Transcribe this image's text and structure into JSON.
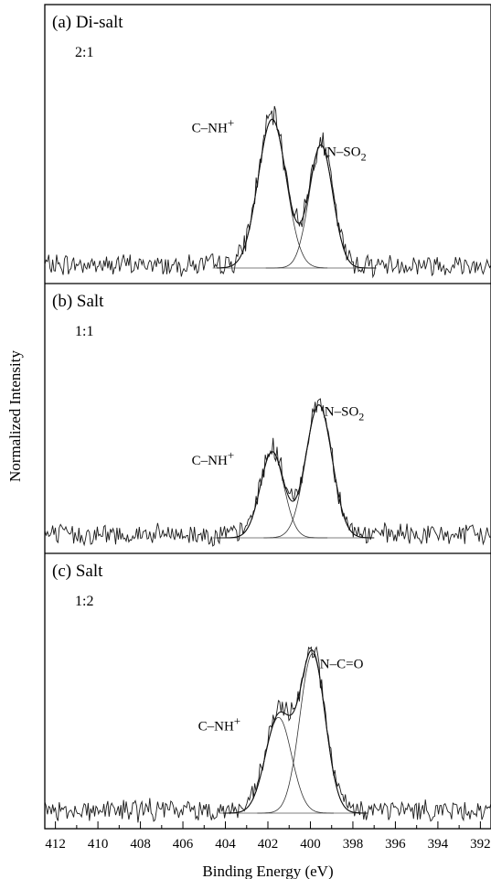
{
  "chart_data": {
    "type": "line",
    "ylabel": "Normalized Intensity",
    "xlabel": "Binding Energy (eV)",
    "xlim": [
      412.5,
      391.5
    ],
    "x_reversed": true,
    "x_ticks": [
      412,
      410,
      408,
      406,
      404,
      402,
      400,
      398,
      396,
      394,
      392
    ],
    "grid": false,
    "panels": [
      {
        "title": "(a) Di-salt",
        "ratio": "2:1",
        "peaks": [
          {
            "label": "C–NH",
            "label_sup": "+",
            "center": 401.8,
            "fwhm": 1.55,
            "height": 0.92
          },
          {
            "label": "N–SO",
            "label_sub": "2",
            "center": 399.5,
            "fwhm": 1.3,
            "height": 0.76
          }
        ]
      },
      {
        "title": "(b) Salt",
        "ratio": "1:1",
        "peaks": [
          {
            "label": "C–NH",
            "label_sup": "+",
            "center": 401.8,
            "fwhm": 1.3,
            "height": 0.55
          },
          {
            "label": "N–SO",
            "label_sub": "2",
            "center": 399.6,
            "fwhm": 1.45,
            "height": 0.85
          }
        ]
      },
      {
        "title": "(c) Salt",
        "ratio": "1:2",
        "peaks": [
          {
            "label": "C–NH",
            "label_sup": "+",
            "center": 401.5,
            "fwhm": 1.45,
            "height": 0.6
          },
          {
            "label": "N–C=O",
            "center": 399.9,
            "fwhm": 1.4,
            "height": 1.0
          }
        ]
      }
    ]
  }
}
